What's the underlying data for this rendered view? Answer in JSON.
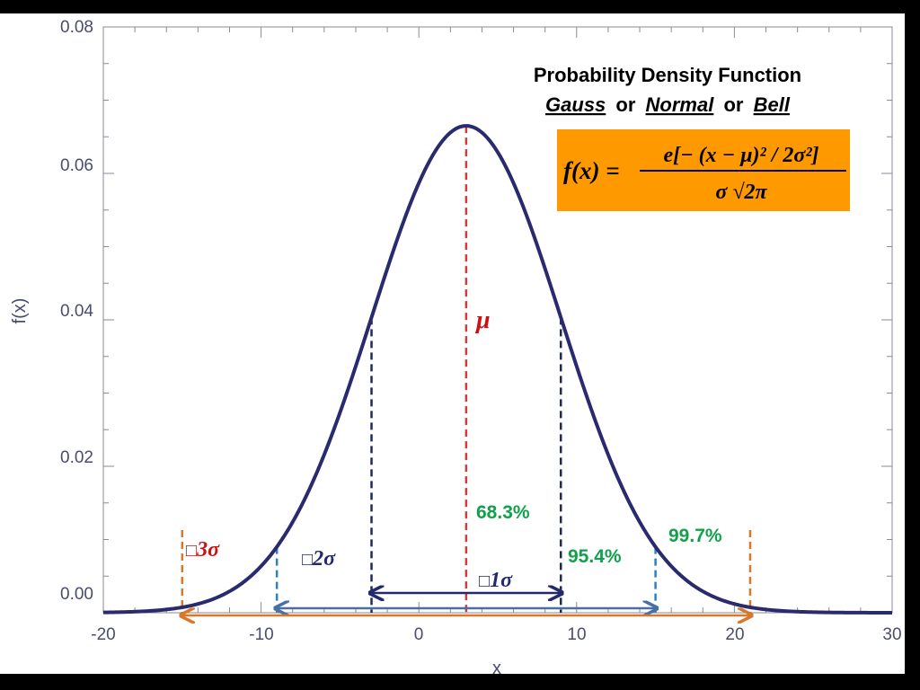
{
  "chart_data": {
    "type": "line",
    "title_line1": "Probability Density Function",
    "title_line2": {
      "w1": "Gauss",
      "or1": "or",
      "w2": "Normal",
      "or2": "or",
      "w3": "Bell"
    },
    "formula": {
      "lhs": "f(x) =",
      "numerator": "e[− (x − μ)² / 2σ²]",
      "denominator": "σ √2π"
    },
    "xlabel": "x",
    "ylabel": "f(x)",
    "xlim": [
      -20,
      30
    ],
    "ylim": [
      0,
      0.08
    ],
    "x_ticks": [
      "-20",
      "-10",
      "0",
      "10",
      "20",
      "30"
    ],
    "y_ticks": [
      "0.00",
      "0.02",
      "0.04",
      "0.06",
      "0.08"
    ],
    "mu": 3,
    "sigma": 6,
    "series": [
      {
        "function": "gaussian"
      }
    ],
    "mu_label": "μ",
    "annotations": [
      {
        "text": "68.3%",
        "color": "#13a04c"
      },
      {
        "text": "95.4%",
        "color": "#13a04c"
      },
      {
        "text": "99.7%",
        "color": "#13a04c"
      }
    ],
    "sigma_labels": [
      {
        "prefix": "□",
        "n": "1",
        "sym": "σ",
        "color": "#232a6b"
      },
      {
        "prefix": "□",
        "n": "2",
        "sym": "σ",
        "color": "#232a6b"
      },
      {
        "prefix": "□",
        "n": "3",
        "sym": "σ",
        "color": "#cc1111"
      }
    ],
    "colors": {
      "curve": "#2a2a6e",
      "mu_line": "#d23a3a",
      "sigma1": "#1e2a5a",
      "sigma2": "#2f7fc0",
      "sigma3": "#d9782b",
      "formula_box": "#ff9900",
      "axis": "#8a8a9a"
    }
  }
}
